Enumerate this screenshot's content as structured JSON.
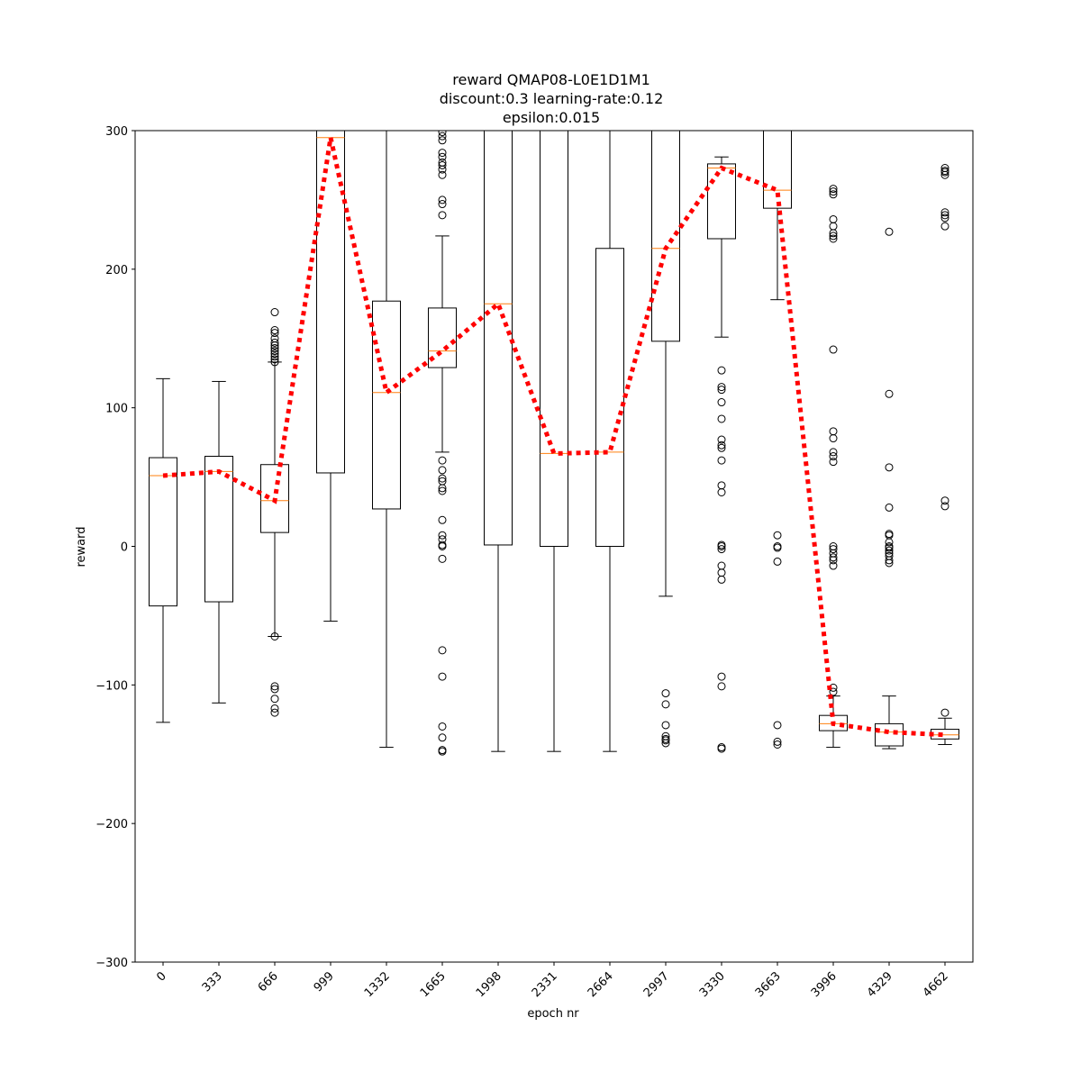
{
  "chart_data": {
    "type": "box",
    "title_lines": [
      "reward QMAP08-L0E1D1M1",
      "discount:0.3 learning-rate:0.12",
      "epsilon:0.015"
    ],
    "xlabel": "epoch nr",
    "ylabel": "reward",
    "ylim": [
      -300,
      300
    ],
    "yticks": [
      -300,
      -200,
      -100,
      0,
      100,
      200,
      300
    ],
    "categories": [
      "0",
      "333",
      "666",
      "999",
      "1332",
      "1665",
      "1998",
      "2331",
      "2664",
      "2997",
      "3330",
      "3663",
      "3996",
      "4329",
      "4662"
    ],
    "boxes": [
      {
        "whisker_low": -127,
        "q1": -43,
        "median": 51,
        "q3": 64,
        "whisker_high": 121,
        "outliers": []
      },
      {
        "whisker_low": -113,
        "q1": -40,
        "median": 54,
        "q3": 65,
        "whisker_high": 119,
        "outliers": []
      },
      {
        "whisker_low": -65,
        "q1": 10,
        "median": 33,
        "q3": 59,
        "whisker_high": 133,
        "outliers": [
          169,
          156,
          154,
          150,
          147,
          145,
          143,
          141,
          139,
          137,
          135,
          133,
          -65,
          -101,
          -103,
          -110,
          -117,
          -120
        ]
      },
      {
        "whisker_low": -54,
        "q1": 53,
        "median": 295,
        "q3": 300,
        "whisker_high": 300,
        "outliers": []
      },
      {
        "whisker_low": -145,
        "q1": 27,
        "median": 111,
        "q3": 177,
        "whisker_high": 300,
        "outliers": []
      },
      {
        "whisker_low": 68,
        "q1": 129,
        "median": 141,
        "q3": 172,
        "whisker_high": 224,
        "outliers": [
          299,
          296,
          293,
          284,
          281,
          277,
          275,
          272,
          268,
          250,
          247,
          239,
          62,
          55,
          49,
          47,
          42,
          40,
          19,
          8,
          5,
          1,
          0,
          -9,
          -75,
          -94,
          -130,
          -138,
          -147,
          -148
        ]
      },
      {
        "whisker_low": -148,
        "q1": 1,
        "median": 175,
        "q3": 300,
        "whisker_high": 300,
        "outliers": []
      },
      {
        "whisker_low": -148,
        "q1": 0,
        "median": 67,
        "q3": 300,
        "whisker_high": 300,
        "outliers": []
      },
      {
        "whisker_low": -148,
        "q1": 0,
        "median": 68,
        "q3": 215,
        "whisker_high": 300,
        "outliers": []
      },
      {
        "whisker_low": -36,
        "q1": 148,
        "median": 215,
        "q3": 300,
        "whisker_high": 300,
        "outliers": [
          -106,
          -114,
          -129,
          -137,
          -139,
          -140,
          -142
        ]
      },
      {
        "whisker_low": 151,
        "q1": 222,
        "median": 273,
        "q3": 276,
        "whisker_high": 281,
        "outliers": [
          127,
          115,
          113,
          104,
          92,
          77,
          73,
          71,
          62,
          44,
          39,
          1,
          0,
          -2,
          -14,
          -19,
          -24,
          -94,
          -101,
          -145,
          -146
        ]
      },
      {
        "whisker_low": 178,
        "q1": 244,
        "median": 257,
        "q3": 300,
        "whisker_high": 300,
        "outliers": [
          8,
          0,
          -1,
          -11,
          -129,
          -141,
          -143
        ]
      },
      {
        "whisker_low": -145,
        "q1": -133,
        "median": -128,
        "q3": -122,
        "whisker_high": -108,
        "outliers": [
          258,
          256,
          254,
          236,
          231,
          226,
          224,
          222,
          142,
          83,
          78,
          68,
          65,
          61,
          0,
          -2,
          -5,
          -8,
          -10,
          -14,
          -102,
          -105
        ]
      },
      {
        "whisker_low": -146,
        "q1": -144,
        "median": -134,
        "q3": -128,
        "whisker_high": -108,
        "outliers": [
          227,
          110,
          57,
          28,
          9,
          8,
          3,
          0,
          -1,
          -3,
          -5,
          -7,
          -10,
          -12
        ]
      },
      {
        "whisker_low": -143,
        "q1": -139,
        "median": -136,
        "q3": -132,
        "whisker_high": -124,
        "outliers": [
          273,
          271,
          270,
          268,
          241,
          239,
          237,
          231,
          33,
          29,
          -120
        ]
      }
    ],
    "mean_line": {
      "color": "#ff0000",
      "style": "dotted",
      "values": [
        51,
        54,
        33,
        295,
        111,
        141,
        175,
        67,
        68,
        215,
        273,
        257,
        -128,
        -134,
        -136
      ]
    },
    "colors": {
      "box": "#000000",
      "median": "#ff7f0e",
      "mean_line": "#ff0000",
      "outlier": "#000000"
    }
  }
}
